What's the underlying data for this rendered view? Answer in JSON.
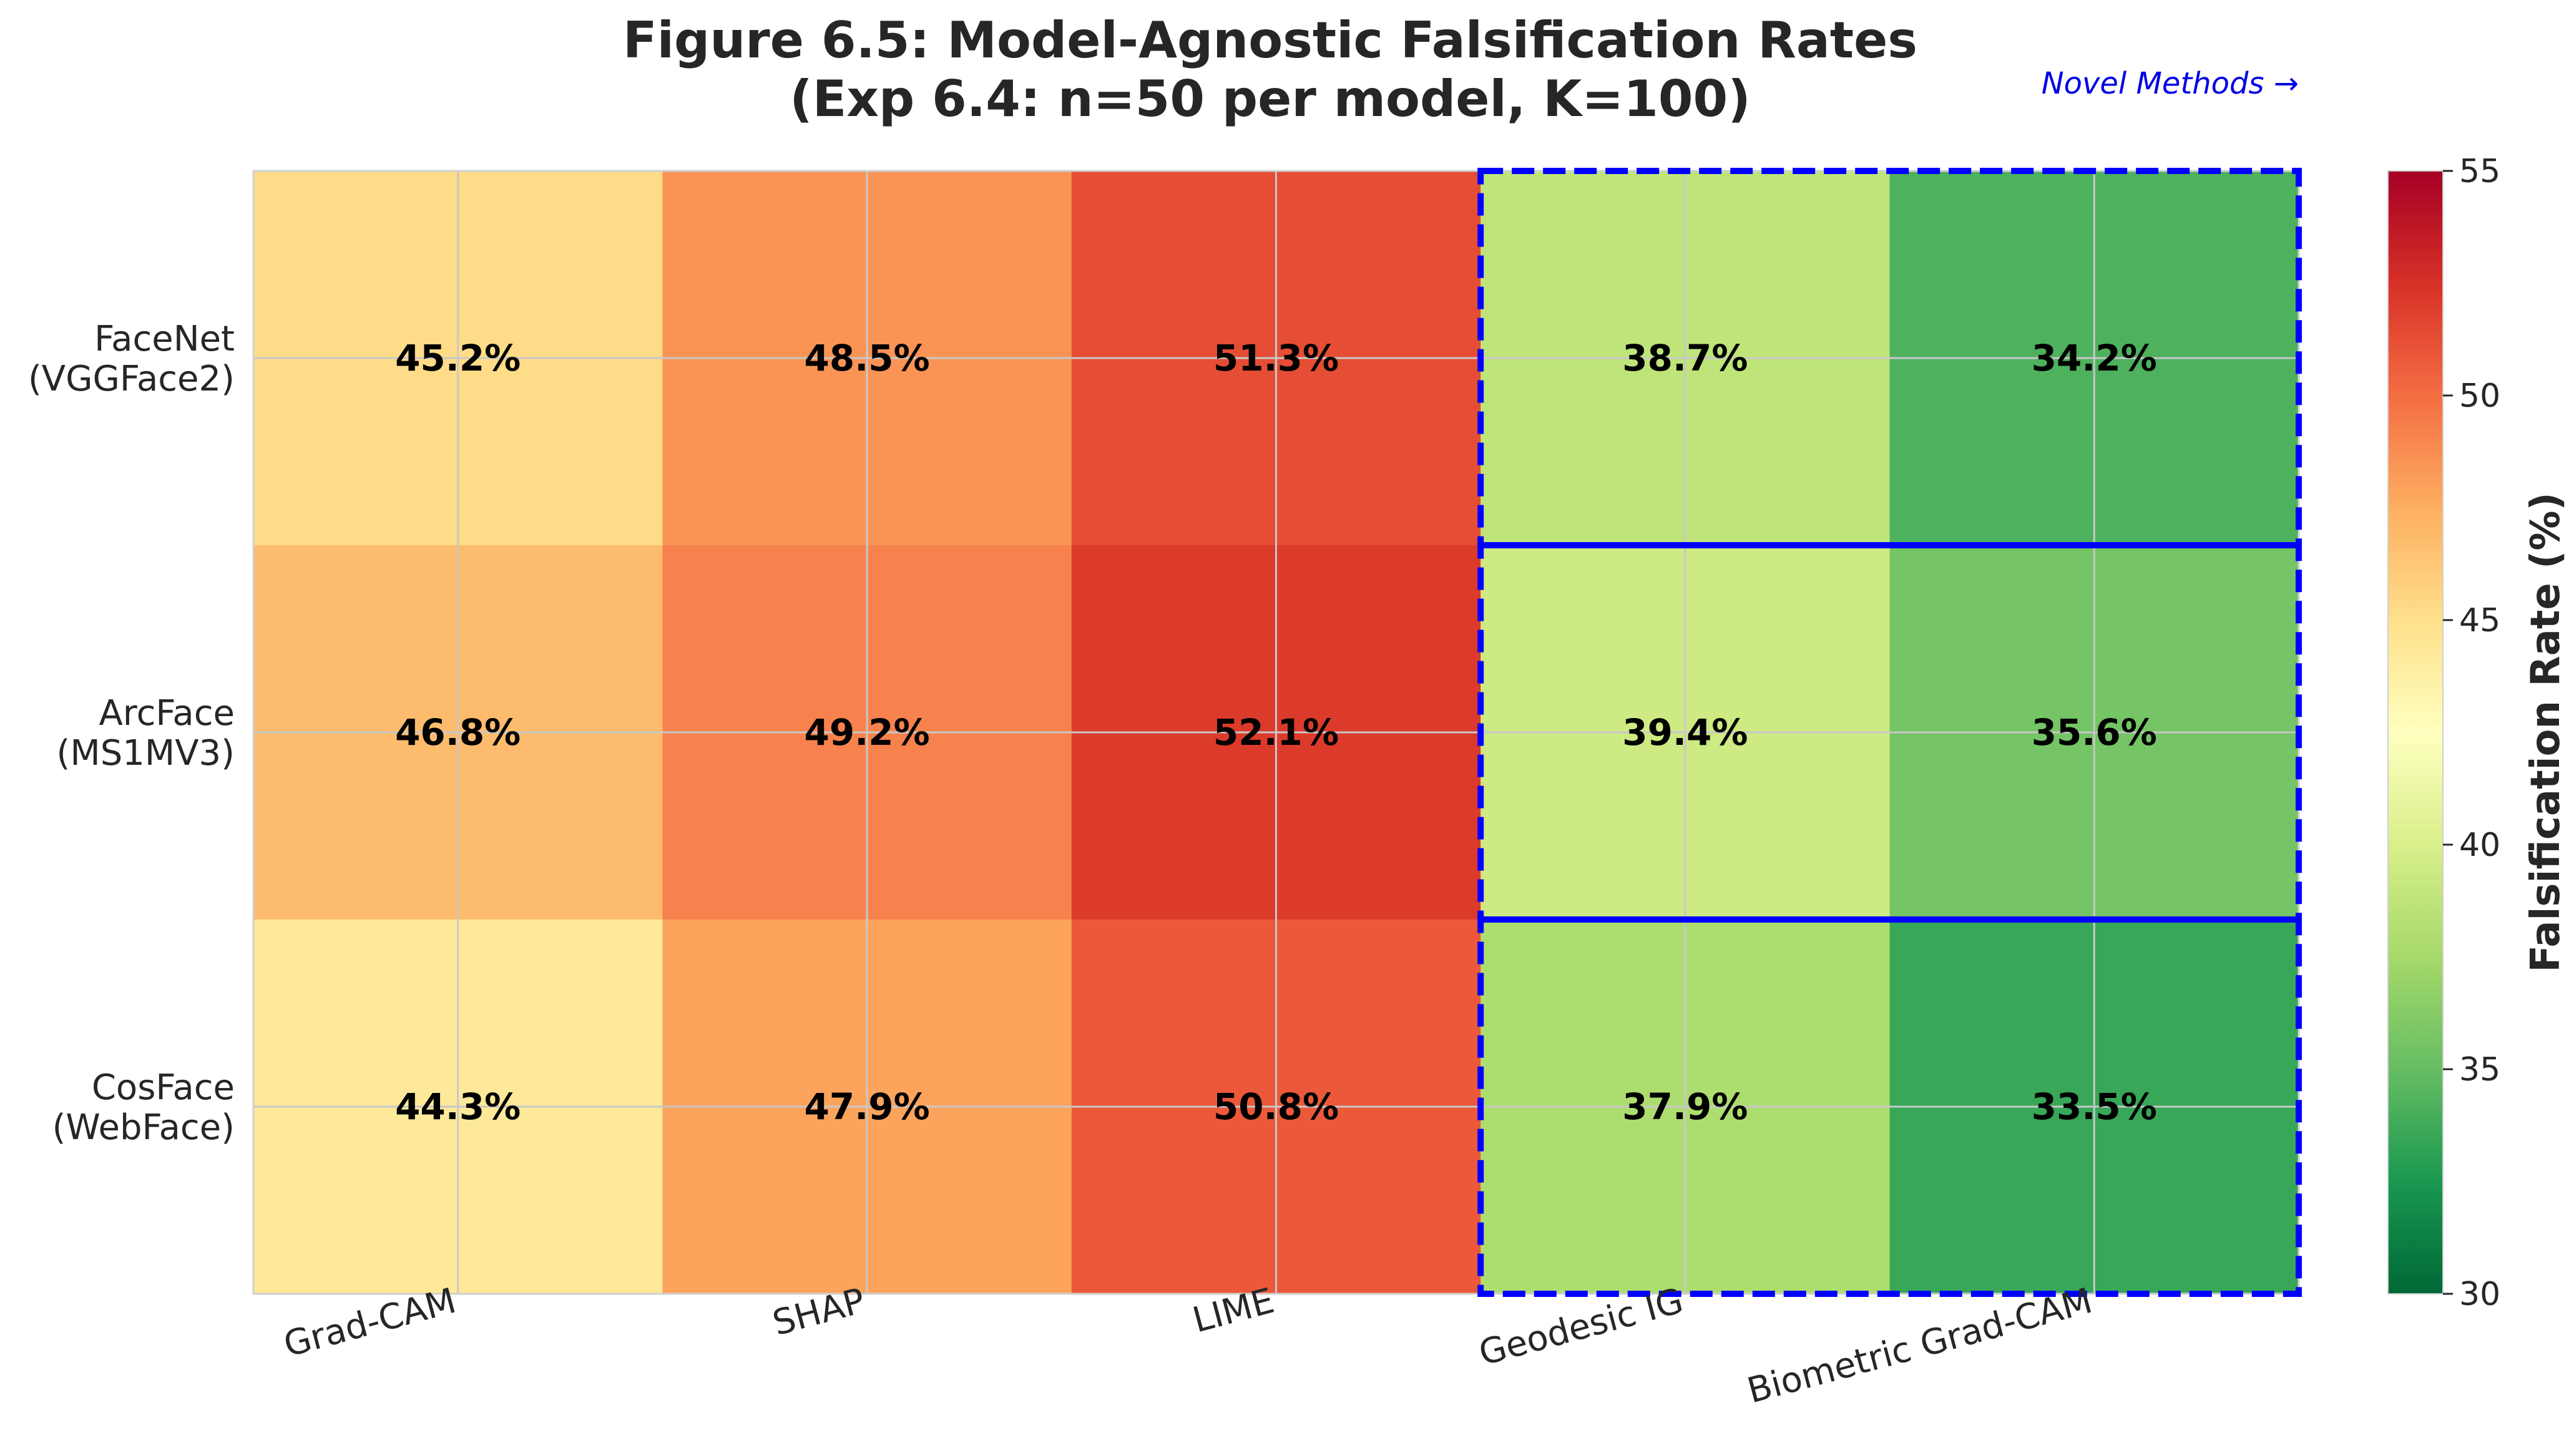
{
  "chart_data": {
    "type": "heatmap",
    "title_line1": "Figure 6.5: Model-Agnostic Falsification Rates",
    "title_line2": "(Exp 6.4: n=50 per model, K=100)",
    "annotation": "Novel Methods →",
    "rows": [
      [
        "FaceNet",
        "(VGGFace2)"
      ],
      [
        "ArcFace",
        "(MS1MV3)"
      ],
      [
        "CosFace",
        "(WebFace)"
      ]
    ],
    "columns": [
      "Grad-CAM",
      "SHAP",
      "LIME",
      "Geodesic IG",
      "Biometric Grad-CAM"
    ],
    "values": [
      [
        45.2,
        48.5,
        51.3,
        38.7,
        34.2
      ],
      [
        46.8,
        49.2,
        52.1,
        39.4,
        35.6
      ],
      [
        44.3,
        47.9,
        50.8,
        37.9,
        33.5
      ]
    ],
    "value_suffix": "%",
    "colorbar": {
      "label": "Falsification Rate (%)",
      "range": [
        30,
        55
      ],
      "ticks": [
        30,
        35,
        40,
        45,
        50,
        55
      ],
      "colormap": "RdYlGn_r"
    },
    "highlight": {
      "columns": [
        "Geodesic IG",
        "Biometric Grad-CAM"
      ],
      "color": "#0000ff",
      "style": "dashed"
    },
    "grid": true
  }
}
